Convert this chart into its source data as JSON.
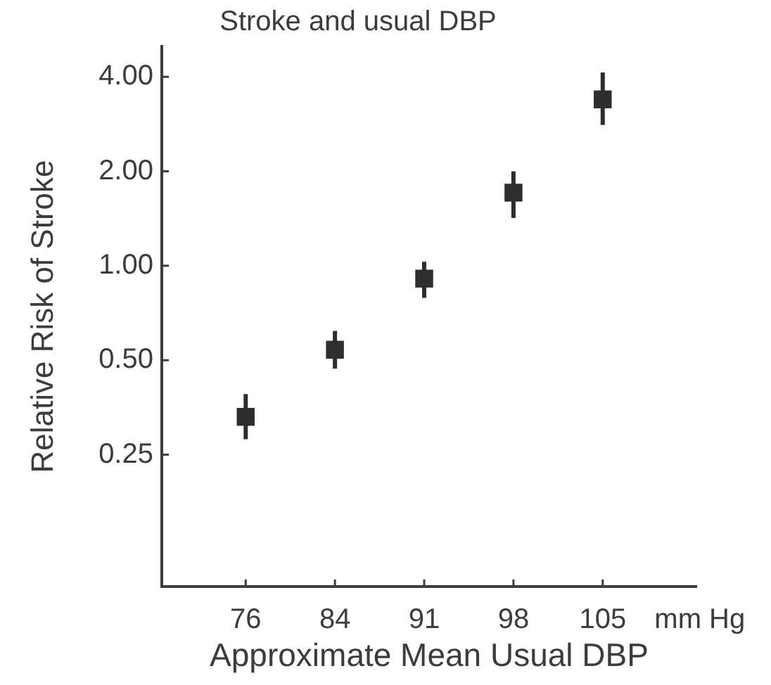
{
  "chart_data": {
    "type": "scatter",
    "title": "Stroke and usual DBP",
    "xlabel": "Approximate Mean Usual DBP",
    "ylabel": "Relative Risk of Stroke",
    "annotations": [
      "mm Hg"
    ],
    "categories": [
      "76",
      "84",
      "91",
      "98",
      "105"
    ],
    "values": [
      0.33,
      0.54,
      0.91,
      1.71,
      3.39
    ],
    "errors": [
      [
        0.28,
        0.39
      ],
      [
        0.47,
        0.62
      ],
      [
        0.79,
        1.03
      ],
      [
        1.42,
        2.0
      ],
      [
        2.81,
        4.13
      ]
    ],
    "color": "#2e2e2e",
    "marker": "square",
    "log": "y",
    "ylim": [
      0.095,
      5
    ],
    "yticks": [
      0.25,
      {
        "value": 0.5,
        "label": "0.50"
      },
      {
        "value": 1,
        "label": "1.00"
      },
      {
        "value": 2,
        "label": "2.00"
      },
      {
        "value": 4,
        "label": "4.00"
      }
    ]
  }
}
